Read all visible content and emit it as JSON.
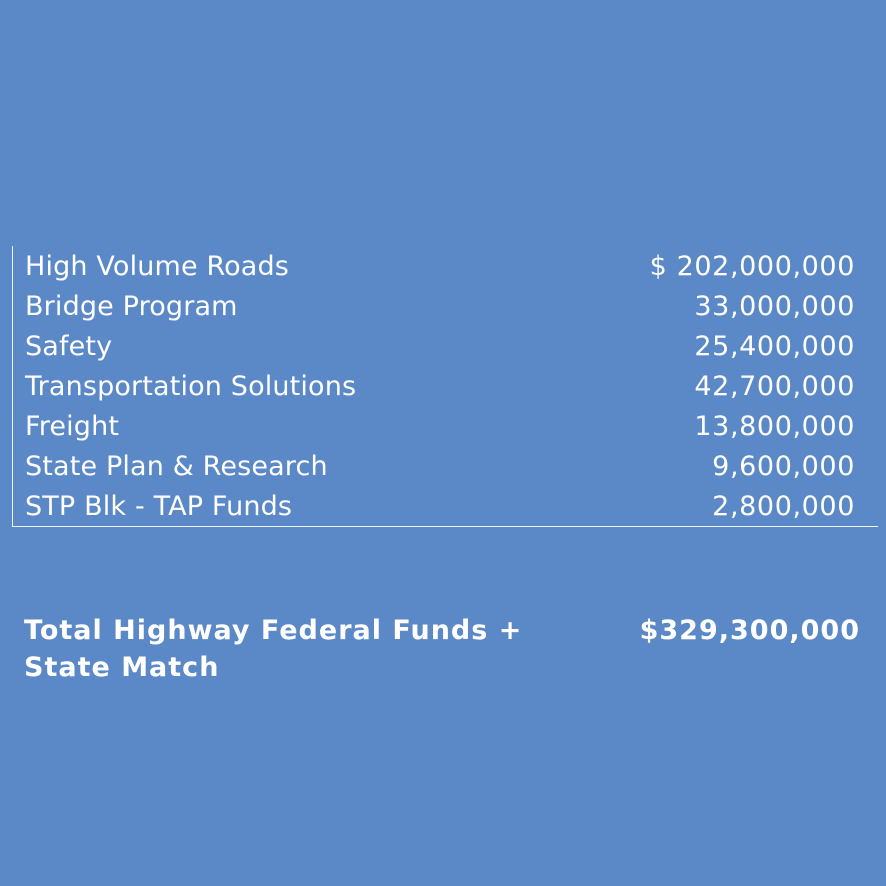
{
  "funds": {
    "rows": [
      {
        "label": "High Volume Roads",
        "amount": "$ 202,000,000"
      },
      {
        "label": "Bridge Program",
        "amount": "33,000,000"
      },
      {
        "label": "Safety",
        "amount": "25,400,000"
      },
      {
        "label": "Transportation Solutions",
        "amount": "42,700,000"
      },
      {
        "label": "Freight",
        "amount": "13,800,000"
      },
      {
        "label": "State Plan & Research",
        "amount": "9,600,000"
      },
      {
        "label": "STP Blk - TAP Funds",
        "amount": "2,800,000"
      }
    ]
  },
  "total": {
    "label": "Total Highway Federal Funds + State Match",
    "amount": "$329,300,000"
  },
  "colors": {
    "background": "#5b88c6",
    "text": "#ffffff",
    "rule": "#ffffff"
  }
}
